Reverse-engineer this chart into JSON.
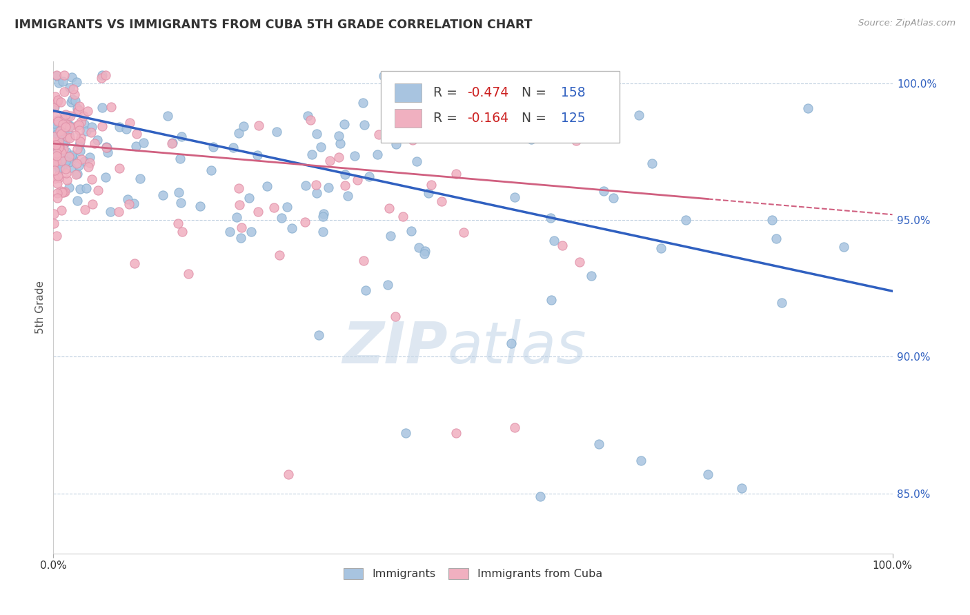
{
  "title": "IMMIGRANTS VS IMMIGRANTS FROM CUBA 5TH GRADE CORRELATION CHART",
  "source": "Source: ZipAtlas.com",
  "ylabel": "5th Grade",
  "legend_label1": "Immigrants",
  "legend_label2": "Immigrants from Cuba",
  "R1": -0.474,
  "N1": 158,
  "R2": -0.164,
  "N2": 125,
  "xlim": [
    0.0,
    1.0
  ],
  "ylim": [
    0.828,
    1.008
  ],
  "blue_color": "#a8c4e0",
  "pink_color": "#f0b0c0",
  "trend_blue": "#3060c0",
  "trend_pink": "#d06080",
  "watermark_zip": "ZIP",
  "watermark_atlas": "atlas",
  "background": "#ffffff",
  "grid_color": "#c0d0e0",
  "seed": 77,
  "ytick_vals": [
    0.85,
    0.9,
    0.95,
    1.0
  ],
  "ytick_labels": [
    "85.0%",
    "90.0%",
    "95.0%",
    "100.0%"
  ],
  "blue_line_x0": 0.0,
  "blue_line_y0": 0.99,
  "blue_line_x1": 1.0,
  "blue_line_y1": 0.924,
  "pink_line_x0": 0.0,
  "pink_line_y0": 0.978,
  "pink_line_x1": 1.0,
  "pink_line_y1": 0.952
}
